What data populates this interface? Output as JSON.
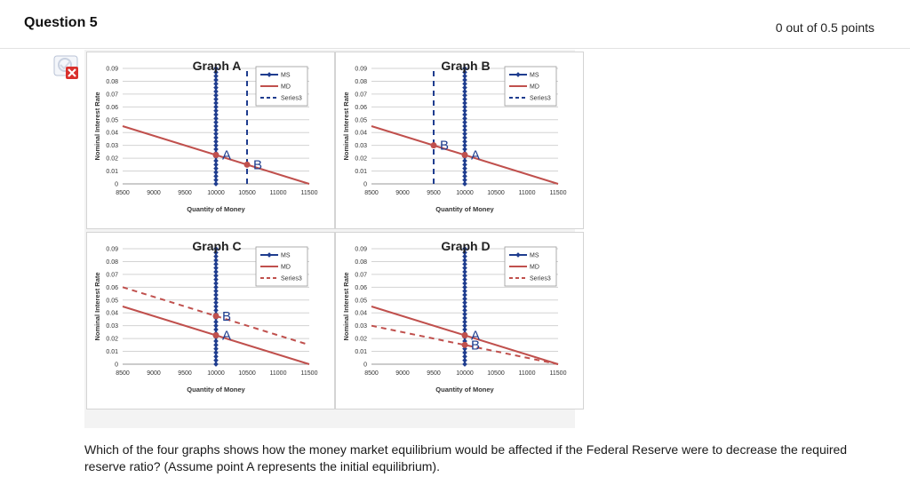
{
  "question": {
    "title": "Question 5",
    "points": "0 out of 0.5 points",
    "status_icon": "incorrect-icon",
    "text": "Which of the four graphs shows how the money market equilibrium would be affected if the Federal Reserve were to decrease the required reserve ratio? (Assume point A represents the initial equilibrium)."
  },
  "colors": {
    "ms": "#1f3d8f",
    "md": "#c0504d",
    "series3_blue": "#1f3d8f",
    "series3_red": "#c0504d"
  },
  "chart_data": [
    {
      "type": "line",
      "title": "Graph A",
      "xlabel": "Quantity of Money",
      "ylabel": "Nominal Interest Rate",
      "xlim": [
        8500,
        11500
      ],
      "ylim": [
        0,
        0.09
      ],
      "xticks": [
        "8500",
        "9000",
        "9500",
        "10000",
        "10500",
        "11000",
        "11500"
      ],
      "yticks": [
        "0",
        "0.01",
        "0.02",
        "0.03",
        "0.04",
        "0.05",
        "0.06",
        "0.07",
        "0.08",
        "0.09"
      ],
      "legend": [
        "MS",
        "MD",
        "Series3"
      ],
      "legend_position": "top-right",
      "series": [
        {
          "name": "MS",
          "style": "solid-markers",
          "color": "#1f3d8f",
          "x": [
            10000,
            10000
          ],
          "y": [
            0,
            0.09
          ]
        },
        {
          "name": "MD",
          "style": "solid",
          "color": "#c0504d",
          "x": [
            8500,
            11500
          ],
          "y": [
            0.045,
            0
          ]
        },
        {
          "name": "Series3",
          "style": "dashed",
          "color": "#1f3d8f",
          "x": [
            10500,
            10500
          ],
          "y": [
            0,
            0.09
          ]
        }
      ],
      "points": [
        {
          "label": "A",
          "x": 10000,
          "y": 0.0225
        },
        {
          "label": "B",
          "x": 10500,
          "y": 0.015
        }
      ]
    },
    {
      "type": "line",
      "title": "Graph B",
      "xlabel": "Quantity of Money",
      "ylabel": "Nominal Interest Rate",
      "xlim": [
        8500,
        11500
      ],
      "ylim": [
        0,
        0.09
      ],
      "xticks": [
        "8500",
        "9000",
        "9500",
        "10000",
        "10500",
        "11000",
        "11500"
      ],
      "yticks": [
        "0",
        "0.01",
        "0.02",
        "0.03",
        "0.04",
        "0.05",
        "0.06",
        "0.07",
        "0.08",
        "0.09"
      ],
      "legend": [
        "MS",
        "MD",
        "Series3"
      ],
      "legend_position": "top-right",
      "series": [
        {
          "name": "MS",
          "style": "solid-markers",
          "color": "#1f3d8f",
          "x": [
            10000,
            10000
          ],
          "y": [
            0,
            0.09
          ]
        },
        {
          "name": "MD",
          "style": "solid",
          "color": "#c0504d",
          "x": [
            8500,
            11500
          ],
          "y": [
            0.045,
            0
          ]
        },
        {
          "name": "Series3",
          "style": "dashed",
          "color": "#1f3d8f",
          "x": [
            9500,
            9500
          ],
          "y": [
            0,
            0.09
          ]
        }
      ],
      "points": [
        {
          "label": "A",
          "x": 10000,
          "y": 0.0225
        },
        {
          "label": "B",
          "x": 9500,
          "y": 0.03
        }
      ]
    },
    {
      "type": "line",
      "title": "Graph C",
      "xlabel": "Quantity of Money",
      "ylabel": "Nominal Interest Rate",
      "xlim": [
        8500,
        11500
      ],
      "ylim": [
        0,
        0.09
      ],
      "xticks": [
        "8500",
        "9000",
        "9500",
        "10000",
        "10500",
        "11000",
        "11500"
      ],
      "yticks": [
        "0",
        "0.01",
        "0.02",
        "0.03",
        "0.04",
        "0.05",
        "0.06",
        "0.07",
        "0.08",
        "0.09"
      ],
      "legend": [
        "MS",
        "MD",
        "Series3"
      ],
      "legend_position": "top-right",
      "series": [
        {
          "name": "MS",
          "style": "solid-markers",
          "color": "#1f3d8f",
          "x": [
            10000,
            10000
          ],
          "y": [
            0,
            0.09
          ]
        },
        {
          "name": "MD",
          "style": "solid",
          "color": "#c0504d",
          "x": [
            8500,
            11500
          ],
          "y": [
            0.045,
            0
          ]
        },
        {
          "name": "Series3",
          "style": "dashed",
          "color": "#c0504d",
          "x": [
            8500,
            11500
          ],
          "y": [
            0.06,
            0.015
          ]
        }
      ],
      "points": [
        {
          "label": "A",
          "x": 10000,
          "y": 0.0225
        },
        {
          "label": "B",
          "x": 10000,
          "y": 0.0375
        }
      ]
    },
    {
      "type": "line",
      "title": "Graph D",
      "xlabel": "Quantity of Money",
      "ylabel": "Nominal Interest Rate",
      "xlim": [
        8500,
        11500
      ],
      "ylim": [
        0,
        0.09
      ],
      "xticks": [
        "8500",
        "9000",
        "9500",
        "10000",
        "10500",
        "11000",
        "11500"
      ],
      "yticks": [
        "0",
        "0.01",
        "0.02",
        "0.03",
        "0.04",
        "0.05",
        "0.06",
        "0.07",
        "0.08",
        "0.09"
      ],
      "legend": [
        "MS",
        "MD",
        "Series3"
      ],
      "legend_position": "top-right",
      "series": [
        {
          "name": "MS",
          "style": "solid-markers",
          "color": "#1f3d8f",
          "x": [
            10000,
            10000
          ],
          "y": [
            0,
            0.09
          ]
        },
        {
          "name": "MD",
          "style": "solid",
          "color": "#c0504d",
          "x": [
            8500,
            11500
          ],
          "y": [
            0.045,
            0
          ]
        },
        {
          "name": "Series3",
          "style": "dashed",
          "color": "#c0504d",
          "x": [
            8500,
            11500
          ],
          "y": [
            0.03,
            0
          ]
        }
      ],
      "points": [
        {
          "label": "A",
          "x": 10000,
          "y": 0.0225
        },
        {
          "label": "B",
          "x": 10000,
          "y": 0.015
        }
      ]
    }
  ]
}
